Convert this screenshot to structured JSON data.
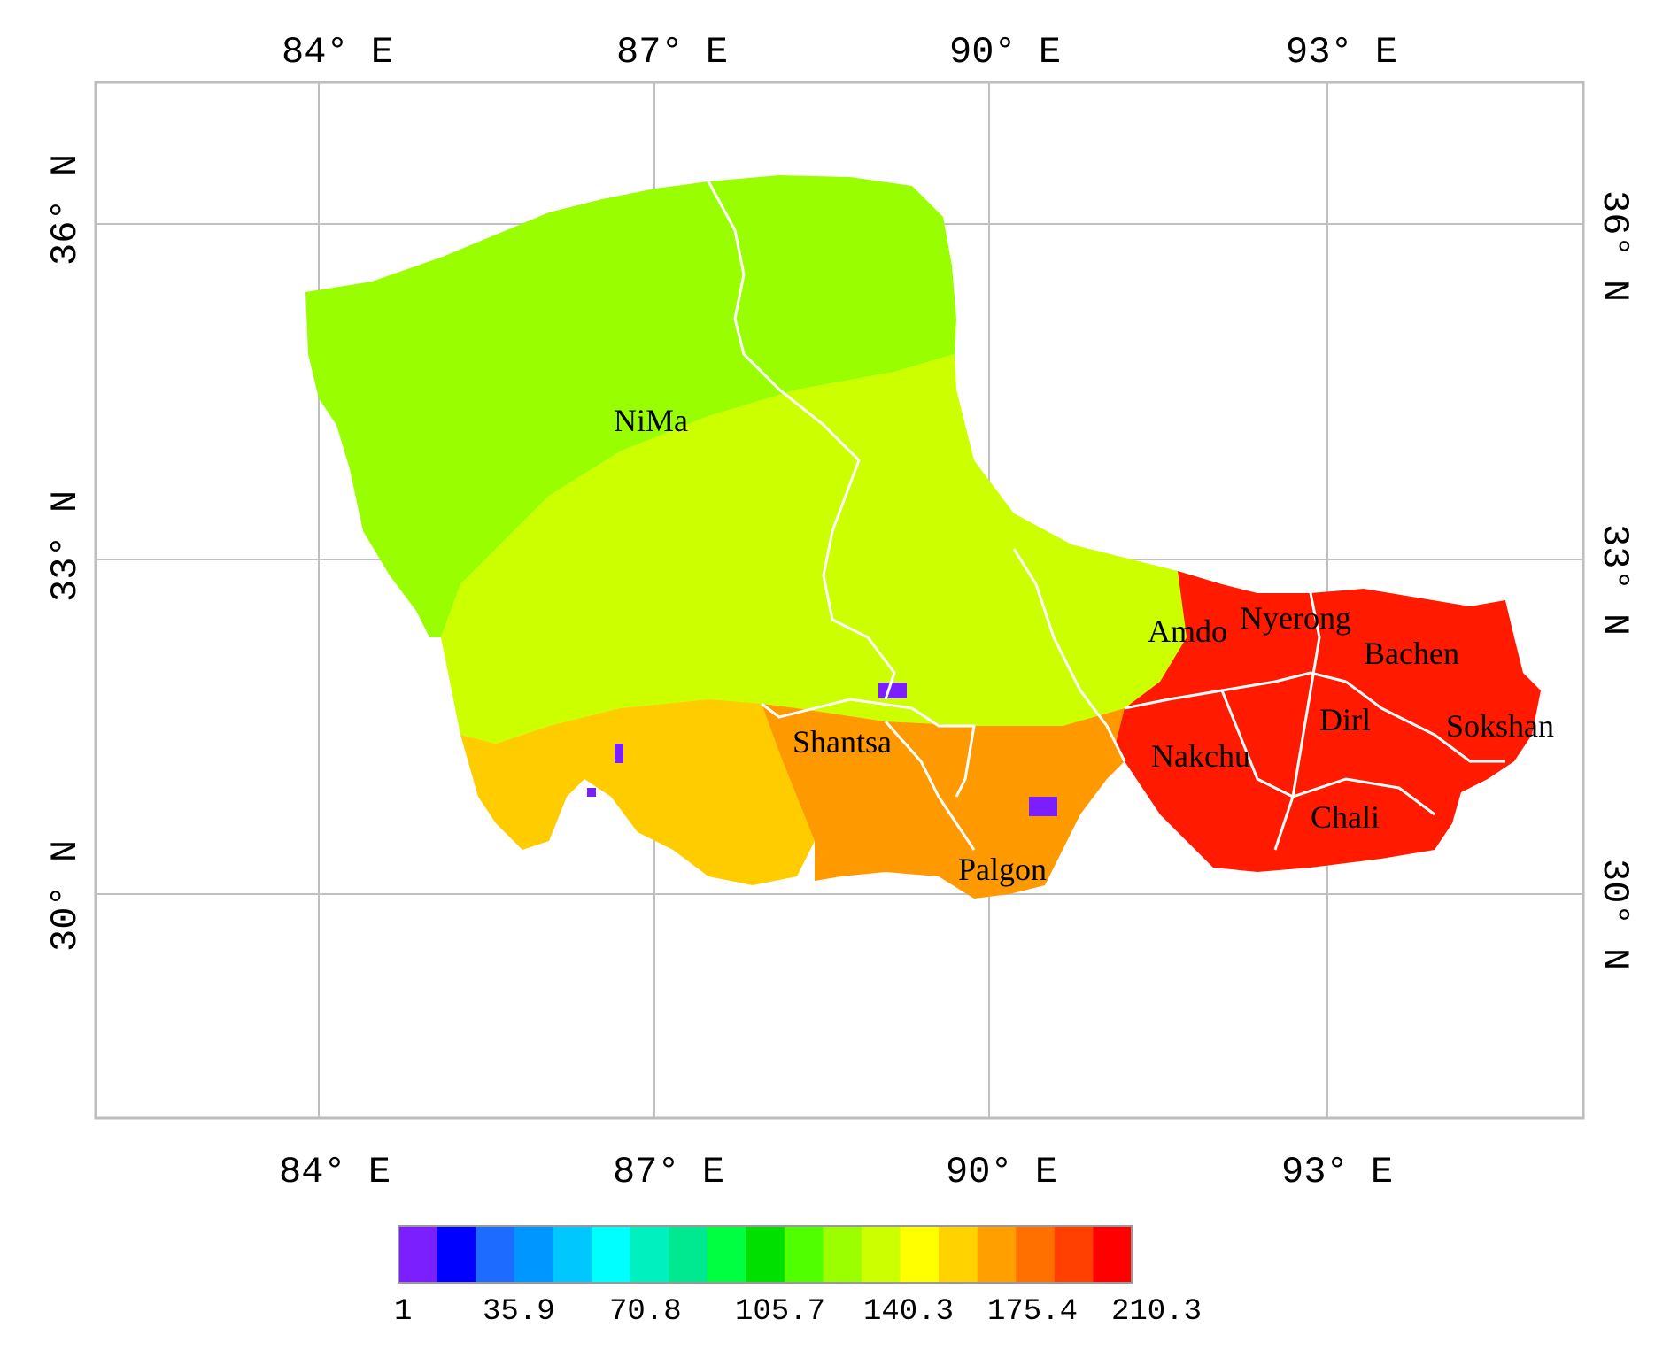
{
  "map": {
    "axes": {
      "top_lon_labels": [
        "84° E",
        "87° E",
        "90° E",
        "93° E"
      ],
      "bottom_lon_labels": [
        "84° E",
        "87° E",
        "90° E",
        "93° E"
      ],
      "left_lat_labels": [
        "36° N",
        "33° N",
        "30° N"
      ],
      "right_lat_labels": [
        "36° N",
        "33° N",
        "30° N"
      ]
    },
    "places": [
      "NiMa",
      "Shantsa",
      "Amdo",
      "Nyerong",
      "Bachen",
      "Dirl",
      "Sokshan",
      "Nakchu",
      "Chali",
      "Palgon"
    ],
    "legend": {
      "tick_labels": [
        "1",
        "35.9",
        "70.8",
        "105.7",
        "140.3",
        "175.4",
        "210.3"
      ],
      "colors": [
        "#7b1fff",
        "#0000ff",
        "#1e6bff",
        "#0096ff",
        "#00c8ff",
        "#00ffff",
        "#00f0c0",
        "#00e890",
        "#00ff40",
        "#00e000",
        "#50ff00",
        "#9cff00",
        "#ccff00",
        "#ffff00",
        "#ffd200",
        "#ffa000",
        "#ff7000",
        "#ff4000",
        "#ff0000"
      ]
    },
    "region_colors": {
      "north": "#99ff00",
      "central": "#ccff00",
      "southwest": "#ffcc00",
      "south": "#ff9900",
      "east": "#ff1a00",
      "outlier": "#7b1fff",
      "boundary": "#ffffff"
    }
  }
}
